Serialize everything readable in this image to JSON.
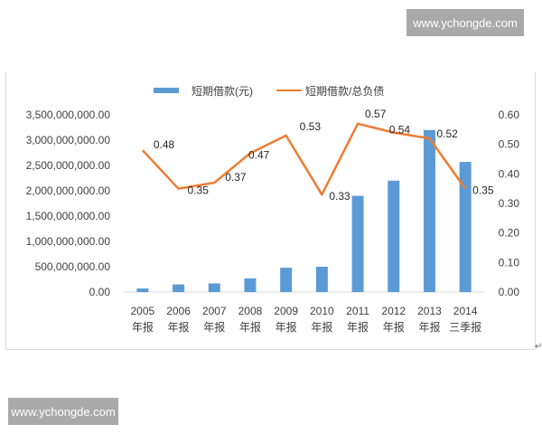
{
  "watermarks": {
    "top": "www.ychongde.com",
    "bottom": "www.ychongde.com"
  },
  "colors": {
    "bar": "#5b9bd5",
    "line": "#ed7d31",
    "axis_text": "#404040",
    "frame": "#d9d9d9",
    "watermark_bg": "#a9a9a9"
  },
  "legend": {
    "bar_label": "短期借款(元)",
    "line_label": "短期借款/总负债"
  },
  "return_mark": "↵",
  "chart_data": {
    "type": "bar+line",
    "title": "",
    "categories": [
      "2005 年报",
      "2006 年报",
      "2007 年报",
      "2008 年报",
      "2009 年报",
      "2010 年报",
      "2011 年报",
      "2012 年报",
      "2013 年报",
      "2014 三季报"
    ],
    "category_lines": [
      [
        "2005",
        "年报"
      ],
      [
        "2006",
        "年报"
      ],
      [
        "2007",
        "年报"
      ],
      [
        "2008",
        "年报"
      ],
      [
        "2009",
        "年报"
      ],
      [
        "2010",
        "年报"
      ],
      [
        "2011",
        "年报"
      ],
      [
        "2012",
        "年报"
      ],
      [
        "2013",
        "年报"
      ],
      [
        "2014",
        "三季报"
      ]
    ],
    "series": [
      {
        "name": "短期借款(元)",
        "type": "bar",
        "axis": "left",
        "values": [
          70000000,
          150000000,
          170000000,
          270000000,
          480000000,
          500000000,
          1900000000,
          2200000000,
          3200000000,
          2570000000
        ]
      },
      {
        "name": "短期借款/总负债",
        "type": "line",
        "axis": "right",
        "values": [
          0.48,
          0.35,
          0.37,
          0.47,
          0.53,
          0.33,
          0.57,
          0.54,
          0.52,
          0.35
        ],
        "data_labels": [
          "0.48",
          "0.35",
          "0.37",
          "0.47",
          "0.53",
          "0.33",
          "0.57",
          "0.54",
          "0.52",
          "0.35"
        ]
      }
    ],
    "y_left": {
      "range": [
        0,
        3500000000
      ],
      "ticks": [
        "0.00",
        "500,000,000.00",
        "1,000,000,000.00",
        "1,500,000,000.00",
        "2,000,000,000.00",
        "2,500,000,000.00",
        "3,000,000,000.00",
        "3,500,000,000.00"
      ]
    },
    "y_right": {
      "range": [
        0,
        0.6
      ],
      "ticks": [
        "0.00",
        "0.10",
        "0.20",
        "0.30",
        "0.40",
        "0.50",
        "0.60"
      ]
    },
    "xlabel": "",
    "ylabel": "",
    "grid": false,
    "legend_position": "top"
  }
}
